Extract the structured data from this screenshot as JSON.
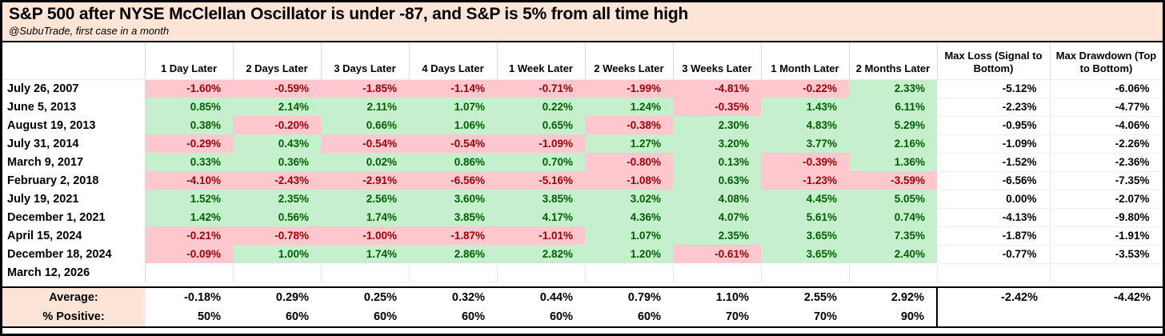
{
  "chart_data": {
    "type": "table",
    "title": "S&P 500 after NYSE McClellan Oscillator is under -87, and S&P is 5% from all time high",
    "subtitle": "@SubuTrade, first case in a month",
    "columns": [
      "",
      "1 Day Later",
      "2 Days Later",
      "3 Days Later",
      "4 Days Later",
      "1 Week Later",
      "2 Weeks Later",
      "3 Weeks Later",
      "1 Month Later",
      "2 Months Later",
      "Max Loss (Signal to Bottom)",
      "Max Drawdown (Top to Bottom)"
    ],
    "rows": [
      {
        "date": "July 26, 2007",
        "returns": [
          "-1.60%",
          "-0.59%",
          "-1.85%",
          "-1.14%",
          "-0.71%",
          "-1.99%",
          "-4.81%",
          "-0.22%",
          "2.33%"
        ],
        "max_loss": "-5.12%",
        "max_drawdown": "-6.06%"
      },
      {
        "date": "June 5, 2013",
        "returns": [
          "0.85%",
          "2.14%",
          "2.11%",
          "1.07%",
          "0.22%",
          "1.24%",
          "-0.35%",
          "1.43%",
          "6.11%"
        ],
        "max_loss": "-2.23%",
        "max_drawdown": "-4.77%"
      },
      {
        "date": "August 19, 2013",
        "returns": [
          "0.38%",
          "-0.20%",
          "0.66%",
          "1.06%",
          "0.65%",
          "-0.38%",
          "2.30%",
          "4.83%",
          "5.29%"
        ],
        "max_loss": "-0.95%",
        "max_drawdown": "-4.06%"
      },
      {
        "date": "July 31, 2014",
        "returns": [
          "-0.29%",
          "0.43%",
          "-0.54%",
          "-0.54%",
          "-1.09%",
          "1.27%",
          "3.20%",
          "3.77%",
          "2.16%"
        ],
        "max_loss": "-1.09%",
        "max_drawdown": "-2.26%"
      },
      {
        "date": "March 9, 2017",
        "returns": [
          "0.33%",
          "0.36%",
          "0.02%",
          "0.86%",
          "0.70%",
          "-0.80%",
          "0.13%",
          "-0.39%",
          "1.36%"
        ],
        "max_loss": "-1.52%",
        "max_drawdown": "-2.36%"
      },
      {
        "date": "February 2, 2018",
        "returns": [
          "-4.10%",
          "-2.43%",
          "-2.91%",
          "-6.56%",
          "-5.16%",
          "-1.08%",
          "0.63%",
          "-1.23%",
          "-3.59%"
        ],
        "max_loss": "-6.56%",
        "max_drawdown": "-7.35%"
      },
      {
        "date": "July 19, 2021",
        "returns": [
          "1.52%",
          "2.35%",
          "2.56%",
          "3.60%",
          "3.85%",
          "3.02%",
          "4.08%",
          "4.45%",
          "5.05%"
        ],
        "max_loss": "0.00%",
        "max_drawdown": "-2.07%"
      },
      {
        "date": "December 1, 2021",
        "returns": [
          "1.42%",
          "0.56%",
          "1.74%",
          "3.85%",
          "4.17%",
          "4.36%",
          "4.07%",
          "5.61%",
          "0.74%"
        ],
        "max_loss": "-4.13%",
        "max_drawdown": "-9.80%"
      },
      {
        "date": "April 15, 2024",
        "returns": [
          "-0.21%",
          "-0.78%",
          "-1.00%",
          "-1.87%",
          "-1.01%",
          "1.07%",
          "2.35%",
          "3.65%",
          "7.35%"
        ],
        "max_loss": "-1.87%",
        "max_drawdown": "-1.91%"
      },
      {
        "date": "December 18, 2024",
        "returns": [
          "-0.09%",
          "1.00%",
          "1.74%",
          "2.86%",
          "2.82%",
          "1.20%",
          "-0.61%",
          "3.65%",
          "2.40%"
        ],
        "max_loss": "-0.77%",
        "max_drawdown": "-3.53%"
      },
      {
        "date": "March 12, 2026",
        "returns": [
          "",
          "",
          "",
          "",
          "",
          "",
          "",
          "",
          ""
        ],
        "max_loss": "",
        "max_drawdown": ""
      }
    ],
    "summary": {
      "average": {
        "label": "Average:",
        "returns": [
          "-0.18%",
          "0.29%",
          "0.25%",
          "0.32%",
          "0.44%",
          "0.79%",
          "1.10%",
          "2.55%",
          "2.92%"
        ],
        "max_loss": "-2.42%",
        "max_drawdown": "-4.42%"
      },
      "percent_positive": {
        "label": "% Positive:",
        "returns": [
          "50%",
          "60%",
          "60%",
          "60%",
          "60%",
          "60%",
          "70%",
          "70%",
          "90%"
        ],
        "max_loss": "",
        "max_drawdown": ""
      }
    },
    "layout_hints": {
      "conditional_format": "negative return = dark-red text on pink fill; positive return = dark-green text on green fill; max columns plain black"
    }
  },
  "colors": {
    "title_bg": "#FCE4D6",
    "negative_fill": "#FFC7CE",
    "negative_text": "#9C0006",
    "positive_fill": "#C6EFCE",
    "positive_text": "#006100",
    "summary_label_bg": "#FCE4D6",
    "border": "#000000"
  }
}
